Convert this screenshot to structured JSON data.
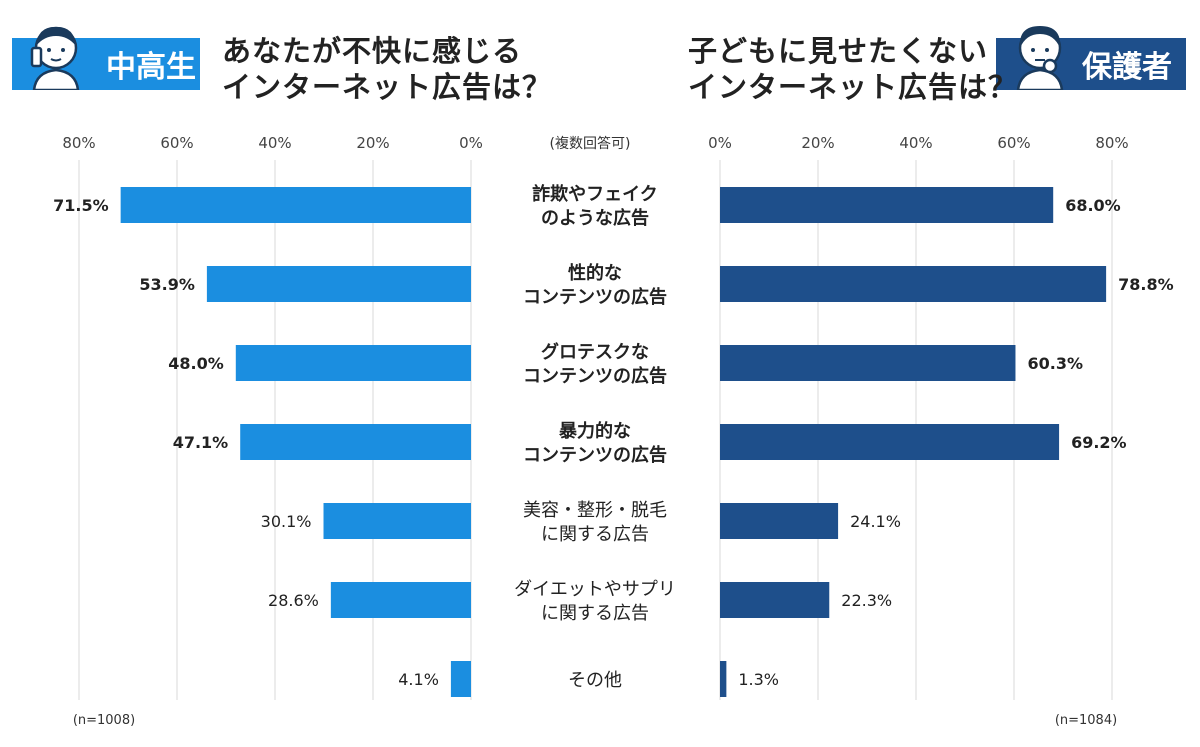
{
  "header": {
    "left_badge": "中高生",
    "left_question_line1": "あなたが不快に感じる",
    "left_question_line2": "インターネット広告は？",
    "right_badge": "保護者",
    "right_question_line1": "子どもに見せたくない",
    "right_question_line2": "インターネット広告は？",
    "multi_answer_note": "(複数回答可)"
  },
  "icons": {
    "left_avatar": "student-phone-icon",
    "right_avatar": "parent-thinking-icon"
  },
  "colors": {
    "students": "#1b8ee0",
    "parents": "#1e4f8b",
    "grid": "#d9d9d9"
  },
  "chart_data": {
    "type": "bar",
    "orientation": "horizontal-butterfly",
    "categories": [
      [
        "詐欺やフェイク",
        "のような広告"
      ],
      [
        "性的な",
        "コンテンツの広告"
      ],
      [
        "グロテスクな",
        "コンテンツの広告"
      ],
      [
        "暴力的な",
        "コンテンツの広告"
      ],
      [
        "美容・整形・脱毛",
        "に関する広告"
      ],
      [
        "ダイエットやサプリ",
        "に関する広告"
      ],
      [
        "その他"
      ]
    ],
    "bold_categories": [
      true,
      true,
      true,
      true,
      false,
      false,
      false
    ],
    "series": [
      {
        "name": "中高生",
        "values": [
          71.5,
          53.9,
          48.0,
          47.1,
          30.1,
          28.6,
          4.1
        ],
        "labels": [
          "71.5%",
          "53.9%",
          "48.0%",
          "47.1%",
          "30.1%",
          "28.6%",
          "4.1%"
        ],
        "n": "(n=1008)"
      },
      {
        "name": "保護者",
        "values": [
          68.0,
          78.8,
          60.3,
          69.2,
          24.1,
          22.3,
          1.3
        ],
        "labels": [
          "68.0%",
          "78.8%",
          "60.3%",
          "69.2%",
          "24.1%",
          "22.3%",
          "1.3%"
        ],
        "n": "(n=1084)"
      }
    ],
    "xlim": [
      0,
      80
    ],
    "ticks": [
      "0%",
      "20%",
      "40%",
      "60%",
      "80%"
    ],
    "tick_values": [
      0,
      20,
      40,
      60,
      80
    ],
    "grid": true
  }
}
